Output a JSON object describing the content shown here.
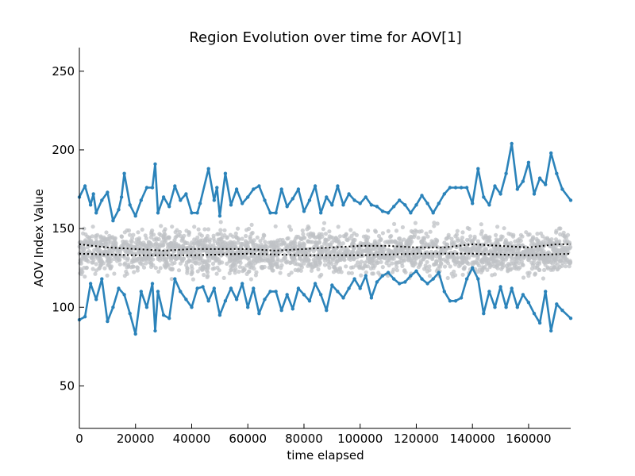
{
  "chart_data": {
    "type": "scatter",
    "title": "Region Evolution over time for AOV[1]",
    "xlabel": "time elapsed",
    "ylabel": "AOV Index Value",
    "xlim": [
      0,
      175000
    ],
    "ylim": [
      23,
      265
    ],
    "xticks": [
      0,
      20000,
      40000,
      60000,
      80000,
      100000,
      120000,
      140000,
      160000
    ],
    "yticks": [
      50,
      100,
      150,
      200,
      250
    ],
    "grid": false,
    "colors": {
      "envelope": "#2b83ba",
      "scatter": "#bfc2c5",
      "median": "#000000"
    },
    "series": [
      {
        "role": "upper_envelope",
        "style": "line",
        "x": [
          0,
          2000,
          4000,
          5000,
          6000,
          8000,
          10000,
          12000,
          14000,
          15000,
          16000,
          18000,
          20000,
          22000,
          24000,
          26000,
          27000,
          28000,
          30000,
          32000,
          34000,
          36000,
          38000,
          40000,
          42000,
          43000,
          46000,
          48000,
          49000,
          50000,
          52000,
          54000,
          56000,
          58000,
          60000,
          62000,
          64000,
          66000,
          68000,
          70000,
          72000,
          74000,
          76000,
          78000,
          80000,
          82000,
          84000,
          86000,
          88000,
          90000,
          92000,
          94000,
          96000,
          98000,
          100000,
          102000,
          104000,
          106000,
          108000,
          110000,
          112000,
          114000,
          116000,
          118000,
          120000,
          122000,
          124000,
          126000,
          128000,
          130000,
          132000,
          134000,
          136000,
          138000,
          140000,
          142000,
          144000,
          146000,
          148000,
          150000,
          152000,
          154000,
          156000,
          158000,
          160000,
          162000,
          164000,
          166000,
          168000,
          170000,
          172000,
          175000
        ],
        "y": [
          170,
          177,
          165,
          172,
          160,
          168,
          173,
          155,
          162,
          170,
          185,
          165,
          158,
          168,
          176,
          176,
          191,
          160,
          170,
          164,
          177,
          168,
          172,
          160,
          160,
          166,
          188,
          168,
          176,
          158,
          185,
          165,
          175,
          166,
          170,
          175,
          177,
          168,
          160,
          160,
          175,
          164,
          169,
          175,
          161,
          168,
          177,
          160,
          170,
          165,
          177,
          165,
          172,
          168,
          166,
          170,
          165,
          164,
          161,
          160,
          164,
          168,
          165,
          160,
          165,
          171,
          166,
          160,
          166,
          172,
          176,
          176,
          176,
          176,
          166,
          188,
          170,
          165,
          177,
          172,
          185,
          204,
          175,
          180,
          192,
          172,
          182,
          178,
          198,
          185,
          175,
          168
        ]
      },
      {
        "role": "lower_envelope",
        "style": "line",
        "x": [
          0,
          2000,
          4000,
          6000,
          8000,
          10000,
          12000,
          14000,
          16000,
          18000,
          20000,
          22000,
          24000,
          26000,
          27000,
          28000,
          30000,
          32000,
          34000,
          36000,
          38000,
          40000,
          42000,
          44000,
          46000,
          48000,
          50000,
          52000,
          54000,
          56000,
          58000,
          60000,
          62000,
          64000,
          66000,
          68000,
          70000,
          72000,
          74000,
          76000,
          78000,
          80000,
          82000,
          84000,
          86000,
          88000,
          90000,
          92000,
          94000,
          96000,
          98000,
          100000,
          102000,
          104000,
          106000,
          108000,
          110000,
          112000,
          114000,
          116000,
          118000,
          120000,
          122000,
          124000,
          126000,
          128000,
          130000,
          132000,
          134000,
          136000,
          138000,
          140000,
          142000,
          144000,
          146000,
          148000,
          150000,
          152000,
          154000,
          156000,
          158000,
          160000,
          162000,
          164000,
          166000,
          168000,
          170000,
          172000,
          175000
        ],
        "y": [
          92,
          94,
          115,
          105,
          118,
          91,
          100,
          112,
          108,
          96,
          83,
          110,
          100,
          115,
          85,
          110,
          95,
          93,
          118,
          110,
          105,
          100,
          112,
          113,
          104,
          112,
          95,
          104,
          112,
          105,
          115,
          100,
          112,
          96,
          105,
          110,
          110,
          98,
          108,
          99,
          112,
          108,
          104,
          115,
          108,
          98,
          114,
          110,
          106,
          112,
          118,
          112,
          120,
          106,
          116,
          120,
          122,
          118,
          115,
          116,
          120,
          123,
          118,
          115,
          118,
          122,
          110,
          104,
          104,
          106,
          118,
          125,
          118,
          96,
          110,
          100,
          113,
          100,
          112,
          100,
          108,
          103,
          96,
          90,
          110,
          85,
          102,
          98,
          93
        ]
      },
      {
        "role": "median",
        "style": "dotted",
        "x": [
          0,
          10000,
          20000,
          30000,
          40000,
          50000,
          60000,
          70000,
          80000,
          90000,
          100000,
          110000,
          120000,
          130000,
          140000,
          150000,
          160000,
          170000,
          175000
        ],
        "y": [
          140,
          138,
          137,
          136,
          137,
          137,
          137,
          136,
          137,
          138,
          139,
          139,
          138,
          138,
          140,
          139,
          138,
          140,
          140
        ]
      },
      {
        "role": "lower_median",
        "style": "dotted",
        "x": [
          0,
          20000,
          40000,
          60000,
          80000,
          100000,
          120000,
          140000,
          160000,
          175000
        ],
        "y": [
          134,
          133,
          133,
          134,
          133,
          133,
          134,
          134,
          133,
          134
        ]
      },
      {
        "role": "point_cloud",
        "style": "scatter",
        "x_range": [
          0,
          175000
        ],
        "y_band": [
          108,
          172
        ],
        "center": 135
      }
    ]
  }
}
